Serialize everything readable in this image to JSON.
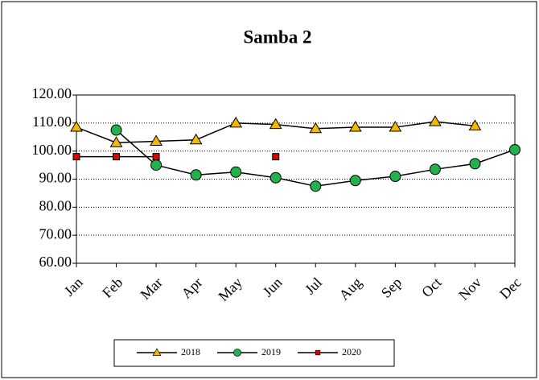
{
  "chart_data": {
    "type": "line",
    "title": "Samba 2",
    "categories": [
      "Jan",
      "Feb",
      "Mar",
      "Apr",
      "May",
      "Jun",
      "Jul",
      "Aug",
      "Sep",
      "Oct",
      "Nov",
      "Dec"
    ],
    "line_color": "#000000",
    "series": [
      {
        "name": "2018",
        "color": "#f5b800",
        "marker": "triangle",
        "values": [
          108.5,
          103,
          103.5,
          104,
          110,
          109.5,
          108,
          108.5,
          108.5,
          110.5,
          109,
          null
        ]
      },
      {
        "name": "2019",
        "color": "#22b14c",
        "marker": "circle",
        "values": [
          null,
          107.5,
          95,
          91.5,
          92.5,
          90.5,
          87.5,
          89.5,
          91,
          93.5,
          95.5,
          100.5
        ]
      },
      {
        "name": "2020",
        "color": "#e00000",
        "marker": "square",
        "values": [
          98,
          98,
          98,
          null,
          null,
          98,
          null,
          null,
          null,
          null,
          null,
          null
        ]
      }
    ],
    "ylim": [
      60,
      120
    ],
    "yticks": [
      {
        "value": 60,
        "label": "60.00"
      },
      {
        "value": 70,
        "label": "70.00"
      },
      {
        "value": 80,
        "label": "80.00"
      },
      {
        "value": 90,
        "label": "90.00"
      },
      {
        "value": 100,
        "label": "100.00"
      },
      {
        "value": 110,
        "label": "110.00"
      },
      {
        "value": 120,
        "label": "120.00"
      }
    ],
    "grid": true,
    "legend": "bottom"
  }
}
